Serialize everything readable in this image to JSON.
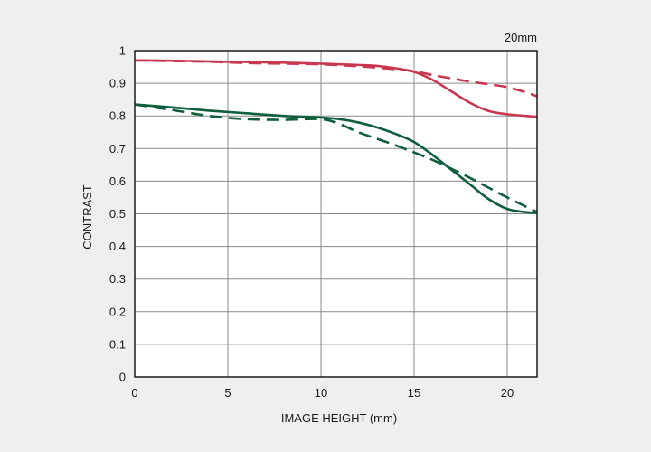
{
  "chart_data": {
    "type": "line",
    "title": "20mm",
    "xlabel": "IMAGE HEIGHT (mm)",
    "ylabel": "CONTRAST",
    "xlim": [
      0,
      21.6
    ],
    "ylim": [
      0,
      1
    ],
    "xticks": [
      0,
      5,
      10,
      15,
      20
    ],
    "yticks": [
      0,
      0.1,
      0.2,
      0.3,
      0.4,
      0.5,
      0.6,
      0.7,
      0.8,
      0.9,
      1
    ],
    "ytick_labels": [
      "0",
      "0.1",
      "0.2",
      "0.3",
      "0.4",
      "0.5",
      "0.6",
      "0.7",
      "0.8",
      "0.9",
      "1"
    ],
    "grid": true,
    "colors": {
      "red": "#c8374f",
      "green": "#0f5e3c",
      "grid": "#8a8a8a",
      "plot_bg": "#ffffff"
    },
    "series": [
      {
        "color": "red",
        "style": "solid",
        "points": [
          [
            0,
            0.97
          ],
          [
            2,
            0.969
          ],
          [
            4,
            0.967
          ],
          [
            6,
            0.965
          ],
          [
            8,
            0.963
          ],
          [
            10,
            0.96
          ],
          [
            12,
            0.956
          ],
          [
            13,
            0.953
          ],
          [
            14,
            0.946
          ],
          [
            15,
            0.935
          ],
          [
            16,
            0.91
          ],
          [
            17,
            0.875
          ],
          [
            18,
            0.84
          ],
          [
            19,
            0.815
          ],
          [
            20,
            0.805
          ],
          [
            21,
            0.8
          ],
          [
            21.6,
            0.797
          ]
        ]
      },
      {
        "color": "red",
        "style": "dashed",
        "points": [
          [
            0,
            0.97
          ],
          [
            2,
            0.968
          ],
          [
            4,
            0.966
          ],
          [
            6,
            0.962
          ],
          [
            8,
            0.96
          ],
          [
            10,
            0.958
          ],
          [
            12,
            0.952
          ],
          [
            14,
            0.943
          ],
          [
            15,
            0.937
          ],
          [
            16,
            0.925
          ],
          [
            17,
            0.915
          ],
          [
            18,
            0.905
          ],
          [
            19,
            0.897
          ],
          [
            20,
            0.888
          ],
          [
            21,
            0.872
          ],
          [
            21.6,
            0.86
          ]
        ]
      },
      {
        "color": "green",
        "style": "solid",
        "points": [
          [
            0,
            0.835
          ],
          [
            2,
            0.826
          ],
          [
            4,
            0.816
          ],
          [
            6,
            0.808
          ],
          [
            8,
            0.8
          ],
          [
            10,
            0.795
          ],
          [
            11,
            0.79
          ],
          [
            12,
            0.78
          ],
          [
            13,
            0.765
          ],
          [
            14,
            0.745
          ],
          [
            15,
            0.72
          ],
          [
            16,
            0.68
          ],
          [
            17,
            0.635
          ],
          [
            18,
            0.59
          ],
          [
            19,
            0.545
          ],
          [
            20,
            0.515
          ],
          [
            21,
            0.505
          ],
          [
            21.6,
            0.503
          ]
        ]
      },
      {
        "color": "green",
        "style": "dashed",
        "points": [
          [
            0,
            0.835
          ],
          [
            2,
            0.818
          ],
          [
            4,
            0.8
          ],
          [
            6,
            0.79
          ],
          [
            8,
            0.788
          ],
          [
            10,
            0.79
          ],
          [
            11,
            0.775
          ],
          [
            12,
            0.75
          ],
          [
            13,
            0.73
          ],
          [
            14,
            0.71
          ],
          [
            15,
            0.688
          ],
          [
            16,
            0.665
          ],
          [
            17,
            0.638
          ],
          [
            18,
            0.61
          ],
          [
            19,
            0.58
          ],
          [
            20,
            0.55
          ],
          [
            21,
            0.522
          ],
          [
            21.6,
            0.505
          ]
        ]
      }
    ]
  }
}
